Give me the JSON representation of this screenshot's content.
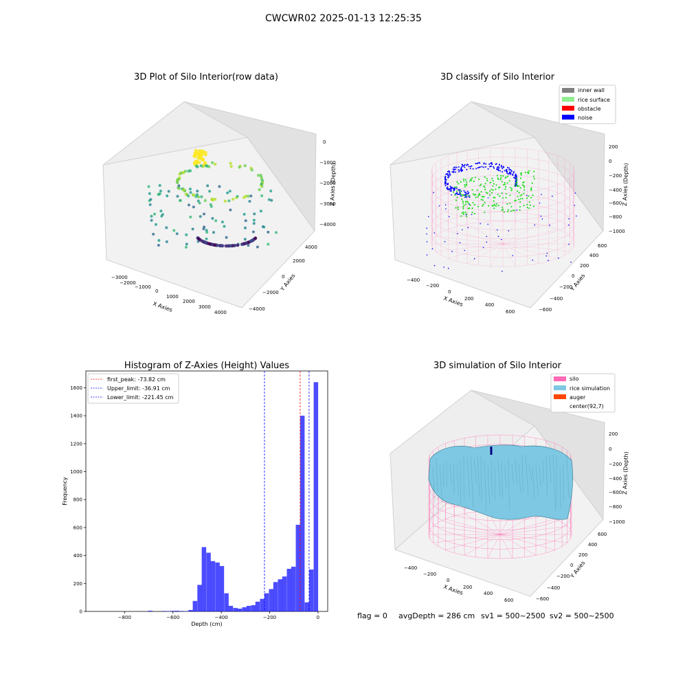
{
  "suptitle": "CWCWR02 2025-01-13 12:25:35",
  "footer": {
    "flag": "flag = 0",
    "avg": "avgDepth = 286 cm",
    "sv1": "sv1 = 500~2500",
    "sv2": "sv2 = 500~2500"
  },
  "colors": {
    "histogram_bar": "#0000ff",
    "pink_wire": "#ff69b4",
    "rice_sim": "#7ec8e3",
    "auger": "#ff4500",
    "inner_wall": "#808080",
    "rice_surface": "#90ee90",
    "obstacle": "#ff0000",
    "noise": "#0000ff",
    "first_peak_line": "#ff0000",
    "limit_lines": "#0000ff"
  },
  "chart_data": [
    {
      "id": "raw",
      "type": "scatter",
      "title": "3D Plot of Silo Interior(row data)",
      "xlabel": "X Axies",
      "ylabel": "Y Axies",
      "zlabel": "Z Axies (Depth)",
      "x_ticks": [
        "−3000",
        "−2000",
        "−1000",
        "0",
        "1000",
        "2000",
        "3000",
        "4000"
      ],
      "y_ticks": [
        "−4000",
        "−2000",
        "0",
        "2000",
        "4000"
      ],
      "z_ticks": [
        "0",
        "−1000",
        "−2000",
        "−3000",
        "−4000"
      ],
      "colormap": "viridis"
    },
    {
      "id": "classify",
      "type": "scatter",
      "title": "3D classify of Silo Interior",
      "xlabel": "X Axies",
      "ylabel": "Y Axies",
      "zlabel": "Z Axies (Depth)",
      "x_ticks": [
        "−400",
        "−200",
        "0",
        "200",
        "400",
        "600"
      ],
      "y_ticks": [
        "−600",
        "−400",
        "−200",
        "0",
        "200",
        "400",
        "600"
      ],
      "z_ticks": [
        "200",
        "0",
        "−200",
        "−400",
        "−600",
        "−800",
        "−1000"
      ],
      "legend": [
        "inner wall",
        "rice surface",
        "obstacle",
        "noise"
      ],
      "legend_placement": "top-right"
    },
    {
      "id": "hist",
      "type": "bar",
      "title": "Histogram of Z-Axies (Height) Values",
      "xlabel": "Depth (cm)",
      "ylabel": "Frequency",
      "xlim": [
        -960,
        40
      ],
      "ylim": [
        0,
        1720
      ],
      "x_ticks": [
        -800,
        -600,
        -400,
        -200,
        0
      ],
      "x_tick_labels": [
        "−800",
        "−600",
        "−400",
        "−200",
        "0"
      ],
      "y_ticks": [
        0,
        200,
        400,
        600,
        800,
        1000,
        1200,
        1400,
        1600
      ],
      "bin_width": 18.5,
      "bins": [
        [
          -703,
          5
        ],
        [
          -647,
          3
        ],
        [
          -629,
          2
        ],
        [
          -610,
          4
        ],
        [
          -592,
          5
        ],
        [
          -573,
          3
        ],
        [
          -555,
          2
        ],
        [
          -536,
          10
        ],
        [
          -518,
          75
        ],
        [
          -499,
          190
        ],
        [
          -481,
          460
        ],
        [
          -462,
          420
        ],
        [
          -444,
          360
        ],
        [
          -425,
          350
        ],
        [
          -407,
          325
        ],
        [
          -388,
          130
        ],
        [
          -370,
          40
        ],
        [
          -351,
          25
        ],
        [
          -333,
          20
        ],
        [
          -314,
          30
        ],
        [
          -296,
          40
        ],
        [
          -277,
          45
        ],
        [
          -259,
          70
        ],
        [
          -240,
          90
        ],
        [
          -222,
          130
        ],
        [
          -203,
          160
        ],
        [
          -185,
          210
        ],
        [
          -166,
          230
        ],
        [
          -148,
          250
        ],
        [
          -129,
          305
        ],
        [
          -111,
          320
        ],
        [
          -92,
          620
        ],
        [
          -74,
          1400
        ],
        [
          -55,
          65
        ],
        [
          -37,
          300
        ],
        [
          -18,
          1640
        ]
      ],
      "vlines": [
        {
          "label": "first_peak: -73.82 cm",
          "x": -73.82,
          "color": "#ff0000"
        },
        {
          "label": "Upper_limit: -36.91 cm",
          "x": -36.91,
          "color": "#0000ff"
        },
        {
          "label": "Lower_limit: -221.45 cm",
          "x": -221.45,
          "color": "#0000ff"
        }
      ],
      "legend_placement": "top-left"
    },
    {
      "id": "sim",
      "type": "area",
      "title": "3D simulation of Silo Interior",
      "xlabel": "X Axies",
      "ylabel": "Y Axies",
      "zlabel": "Z Axies (Depth)",
      "x_ticks": [
        "−400",
        "−200",
        "0",
        "200",
        "400",
        "600"
      ],
      "y_ticks": [
        "−600",
        "−400",
        "−200",
        "0",
        "200",
        "400",
        "600"
      ],
      "z_ticks": [
        "200",
        "0",
        "−200",
        "−400",
        "−600",
        "−800",
        "−1000"
      ],
      "legend": [
        "silo",
        "rice simulation",
        "auger",
        "center(92,7)"
      ],
      "legend_placement": "top-right"
    }
  ]
}
